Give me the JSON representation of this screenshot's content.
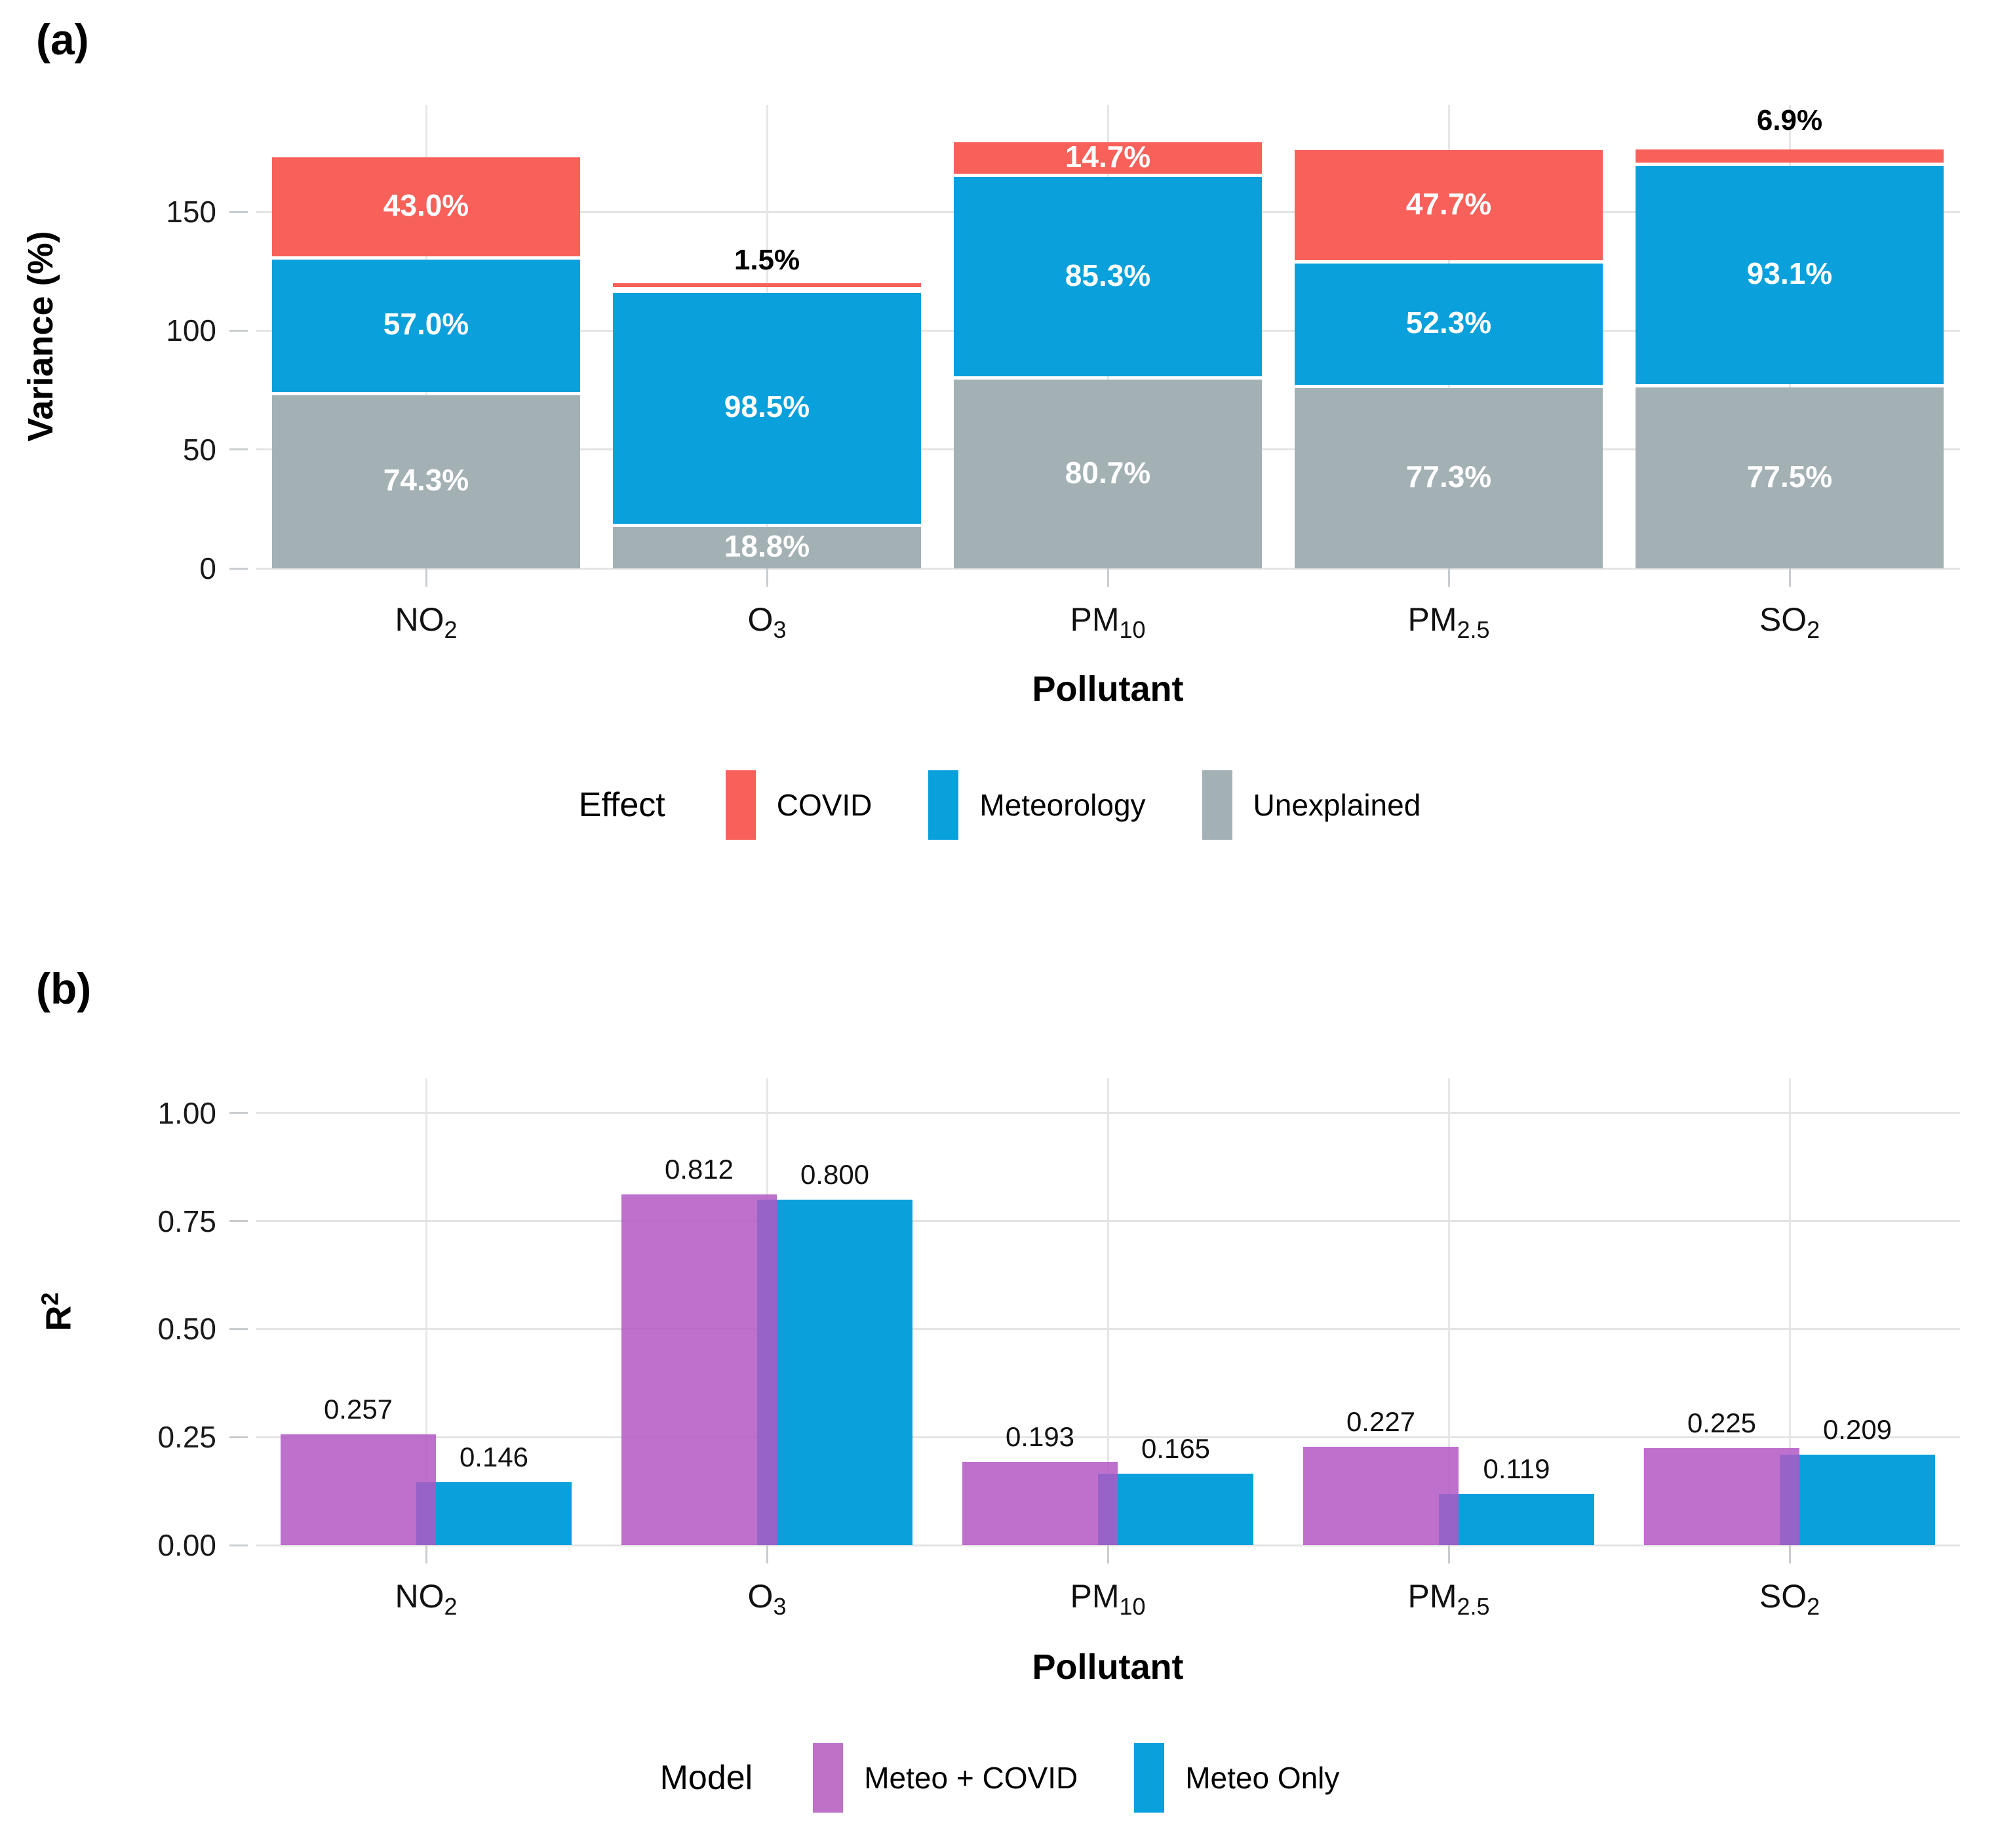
{
  "panel_a": {
    "label": "(a)",
    "y_axis_title": "Variance (%)",
    "x_axis_title": "Pollutant",
    "legend_title": "Effect"
  },
  "panel_b": {
    "label": "(b)",
    "y_axis_title_base": "R",
    "y_axis_title_sup": "2",
    "x_axis_title": "Pollutant",
    "legend_title": "Model"
  },
  "colors": {
    "covid_red": "#F8605A",
    "meteorology_blue": "#09A0DC",
    "unexplained_gray": "#A3B0B4",
    "meteo_covid_purple": "#BD72C8",
    "gridline": "#E4E4E4"
  },
  "chart_data": [
    {
      "panel": "a",
      "type": "bar",
      "variant": "stacked",
      "title": "",
      "xlabel": "Pollutant",
      "ylabel": "Variance (%)",
      "ylim": [
        0,
        195
      ],
      "grid": true,
      "legend_position": "bottom",
      "legend_title": "Effect",
      "yticks": [
        {
          "value": 0,
          "label": "0"
        },
        {
          "value": 50,
          "label": "50"
        },
        {
          "value": 100,
          "label": "100"
        },
        {
          "value": 150,
          "label": "150"
        }
      ],
      "categories": [
        {
          "base": "NO",
          "sub": "2"
        },
        {
          "base": "O",
          "sub": "3"
        },
        {
          "base": "PM",
          "sub": "10"
        },
        {
          "base": "PM",
          "sub": "2.5"
        },
        {
          "base": "SO",
          "sub": "2"
        }
      ],
      "series": [
        {
          "name": "Unexplained",
          "color": "#A3B0B4",
          "values": [
            74.3,
            18.8,
            80.7,
            77.3,
            77.5
          ],
          "labels": [
            "74.3%",
            "18.8%",
            "80.7%",
            "77.3%",
            "77.5%"
          ],
          "label_outside": [
            false,
            false,
            false,
            false,
            false
          ]
        },
        {
          "name": "Meteorology",
          "color": "#09A0DC",
          "values": [
            57.0,
            98.5,
            85.3,
            52.3,
            93.1
          ],
          "labels": [
            "57.0%",
            "98.5%",
            "85.3%",
            "52.3%",
            "93.1%"
          ],
          "label_outside": [
            false,
            false,
            false,
            false,
            false
          ]
        },
        {
          "name": "COVID",
          "color": "#F8605A",
          "values": [
            43.0,
            1.5,
            14.7,
            47.7,
            6.9
          ],
          "labels": [
            "43.0%",
            "1.5%",
            "14.7%",
            "47.7%",
            "6.9%"
          ],
          "label_outside": [
            false,
            true,
            false,
            false,
            true
          ]
        }
      ],
      "legend_items": [
        {
          "label": "COVID",
          "color": "#F8605A"
        },
        {
          "label": "Meteorology",
          "color": "#09A0DC"
        },
        {
          "label": "Unexplained",
          "color": "#A3B0B4"
        }
      ]
    },
    {
      "panel": "b",
      "type": "bar",
      "variant": "grouped-overlap",
      "title": "",
      "xlabel": "Pollutant",
      "ylabel": "R2",
      "ylim": [
        0,
        1.08
      ],
      "grid": true,
      "legend_position": "bottom",
      "legend_title": "Model",
      "yticks": [
        {
          "value": 0,
          "label": "0.00"
        },
        {
          "value": 0.25,
          "label": "0.25"
        },
        {
          "value": 0.5,
          "label": "0.50"
        },
        {
          "value": 0.75,
          "label": "0.75"
        },
        {
          "value": 1.0,
          "label": "1.00"
        }
      ],
      "categories": [
        {
          "base": "NO",
          "sub": "2"
        },
        {
          "base": "O",
          "sub": "3"
        },
        {
          "base": "PM",
          "sub": "10"
        },
        {
          "base": "PM",
          "sub": "2.5"
        },
        {
          "base": "SO",
          "sub": "2"
        }
      ],
      "series": [
        {
          "name": "Meteo + COVID",
          "color_rgba": "rgba(177,88,196,0.85)",
          "legend_color": "#BD72C8",
          "values": [
            0.257,
            0.812,
            0.193,
            0.227,
            0.225
          ],
          "labels": [
            "0.257",
            "0.812",
            "0.193",
            "0.227",
            "0.225"
          ]
        },
        {
          "name": "Meteo Only",
          "color_rgba": "rgba(9,160,220,1)",
          "legend_color": "#09A0DC",
          "values": [
            0.146,
            0.8,
            0.165,
            0.119,
            0.209
          ],
          "labels": [
            "0.146",
            "0.800",
            "0.165",
            "0.119",
            "0.209"
          ]
        }
      ],
      "legend_items": [
        {
          "label": "Meteo + COVID",
          "color": "#BD72C8"
        },
        {
          "label": "Meteo Only",
          "color": "#09A0DC"
        }
      ]
    }
  ]
}
